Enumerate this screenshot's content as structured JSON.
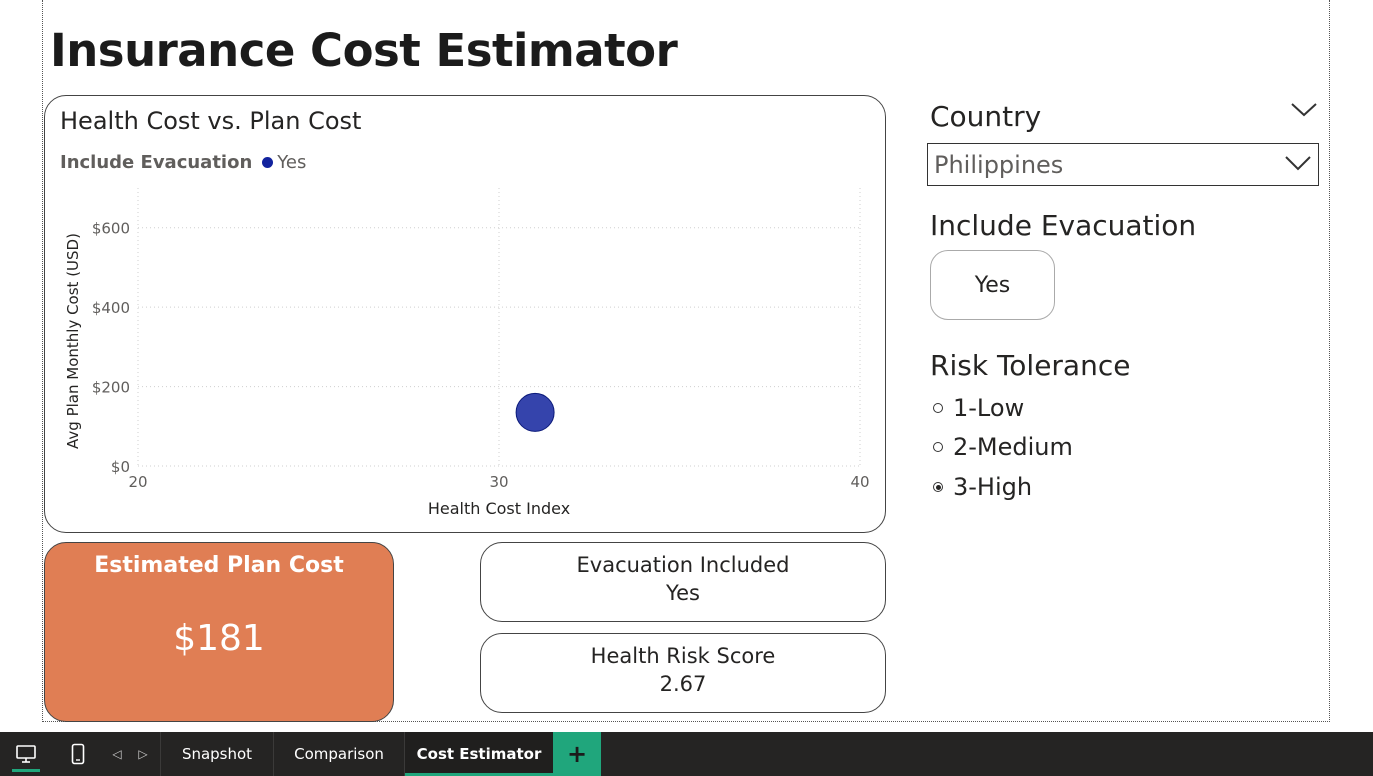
{
  "page": {
    "title": "Insurance Cost Estimator"
  },
  "chart": {
    "title": "Health Cost vs. Plan Cost",
    "legend_title": "Include Evacuation",
    "legend_items": [
      "Yes"
    ]
  },
  "chart_data": {
    "type": "scatter",
    "title": "Health Cost vs. Plan Cost",
    "xlabel": "Health Cost Index",
    "ylabel": "Avg Plan Monthly Cost (USD)",
    "xlim": [
      20,
      40
    ],
    "ylim": [
      0,
      700
    ],
    "x_ticks": [
      "20",
      "30",
      "40"
    ],
    "y_ticks": [
      "$0",
      "$200",
      "$400",
      "$600"
    ],
    "x_tick_values": [
      20,
      30,
      40
    ],
    "y_tick_values": [
      0,
      200,
      400,
      600
    ],
    "grid": true,
    "legend": "top-left",
    "series": [
      {
        "name": "Yes",
        "color": "#12239e",
        "points": [
          {
            "x": 31,
            "y": 135
          }
        ]
      }
    ]
  },
  "kpis": {
    "estimated_plan_cost": {
      "label": "Estimated Plan Cost",
      "value": "$181"
    },
    "evacuation_included": {
      "label": "Evacuation Included",
      "value": "Yes"
    },
    "health_risk_score": {
      "label": "Health Risk Score",
      "value": "2.67"
    }
  },
  "slicers": {
    "country": {
      "title": "Country",
      "selected": "Philippines"
    },
    "evacuation": {
      "title": "Include Evacuation",
      "option": "Yes"
    },
    "risk": {
      "title": "Risk Tolerance",
      "options": [
        "1-Low",
        "2-Medium",
        "3-High"
      ],
      "selected": "3-High"
    }
  },
  "tabs": {
    "items": [
      "Snapshot",
      "Comparison",
      "Cost Estimator"
    ],
    "active": "Cost Estimator",
    "add_label": "+"
  },
  "colors": {
    "accent": "#20a67c",
    "kpi_orange": "#e07e54",
    "series_yes": "#12239e"
  },
  "icons": {
    "desktop": "desktop-view-icon",
    "mobile": "mobile-view-icon",
    "prev": "prev-page-icon",
    "next": "next-page-icon",
    "dropdown": "chevron-down-icon"
  }
}
